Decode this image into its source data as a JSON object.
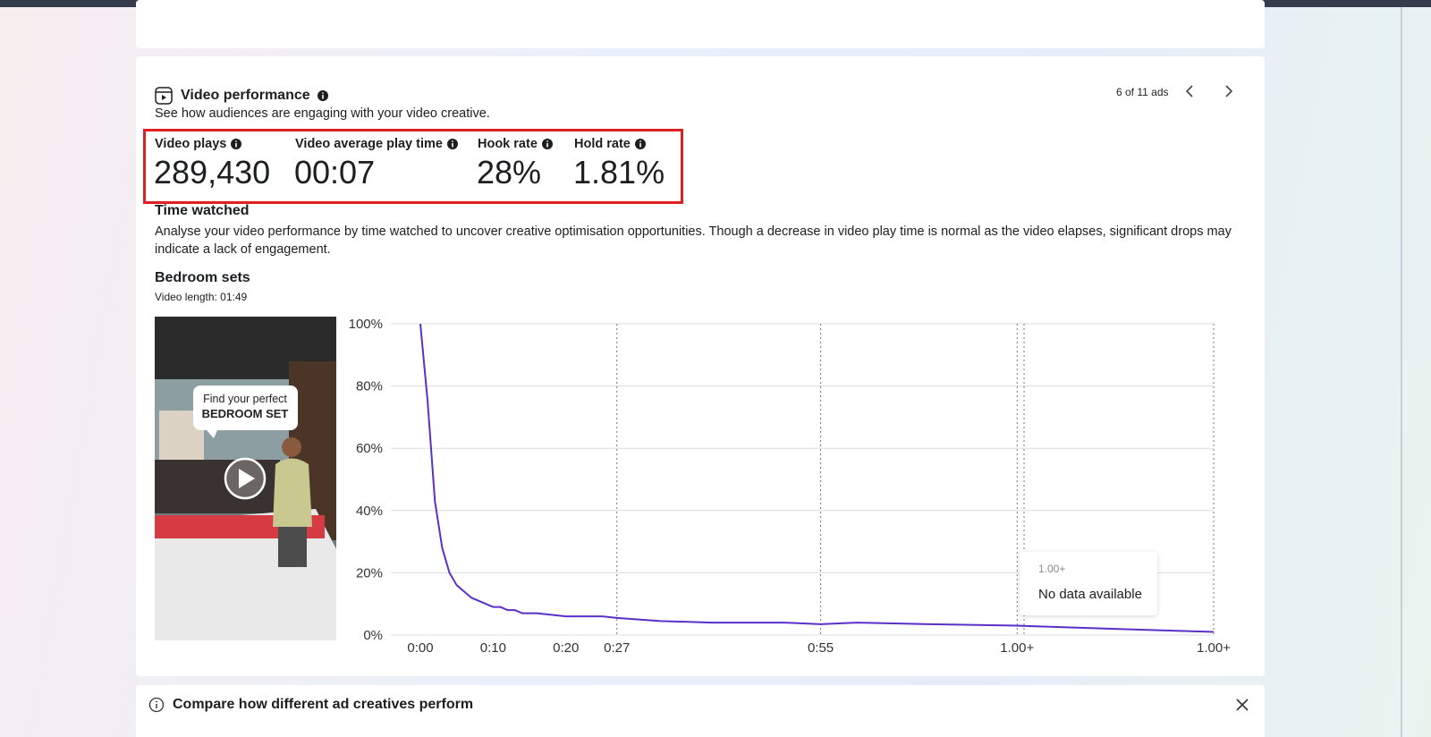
{
  "header": {
    "title": "Video performance",
    "subtitle": "See how audiences are engaging with your video creative.",
    "pager": "6 of 11 ads"
  },
  "metrics": [
    {
      "label": "Video plays",
      "value": "289,430"
    },
    {
      "label": "Video average play time",
      "value": "00:07"
    },
    {
      "label": "Hook rate",
      "value": "28%"
    },
    {
      "label": "Hold rate",
      "value": "1.81%"
    }
  ],
  "time_watched": {
    "title": "Time watched",
    "description": "Analyse your video performance by time watched to uncover creative optimisation opportunities. Though a decrease in video play time is normal as the video elapses, significant drops may indicate a lack of engagement."
  },
  "video": {
    "title": "Bedroom sets",
    "length": "Video length: 01:49",
    "thumbnail_text": [
      "Find your perfect",
      "BEDROOM SET"
    ]
  },
  "chart_data": {
    "type": "line",
    "x": [
      0,
      1,
      2,
      3,
      4,
      5,
      6,
      7,
      8,
      9,
      10,
      11,
      12,
      13,
      14,
      16,
      18,
      20,
      25,
      27,
      33,
      40,
      50,
      55,
      60,
      70,
      82,
      95,
      109
    ],
    "series": [
      {
        "color": "#5b2fc9",
        "values": [
          100,
          75,
          43,
          28,
          20,
          16,
          14,
          12,
          11,
          10,
          9,
          9,
          8,
          8,
          7,
          7,
          6.5,
          6,
          6,
          5.5,
          4.5,
          4,
          4,
          3.5,
          4,
          3.5,
          3,
          2,
          1
        ]
      }
    ],
    "xlim": [
      0,
      109
    ],
    "xticks": [
      {
        "value": 0,
        "label": "0:00"
      },
      {
        "value": 10,
        "label": "0:10"
      },
      {
        "value": 20,
        "label": "0:20"
      },
      {
        "value": 27,
        "label": "0:27"
      },
      {
        "value": 55,
        "label": "0:55"
      },
      {
        "value": 82,
        "label": "1.00+"
      },
      {
        "value": 109,
        "label": "1.00+"
      }
    ],
    "ylim": [
      0,
      100
    ],
    "yticks": [
      {
        "value": 0,
        "label": "0%"
      },
      {
        "value": 20,
        "label": "20%"
      },
      {
        "value": 40,
        "label": "40%"
      },
      {
        "value": 60,
        "label": "60%"
      },
      {
        "value": 80,
        "label": "80%"
      },
      {
        "value": 100,
        "label": "100%"
      }
    ],
    "grid": true,
    "tooltip": {
      "title": "1.00+",
      "text": "No data available"
    }
  },
  "banner": {
    "text": "Compare how different ad creatives perform"
  }
}
